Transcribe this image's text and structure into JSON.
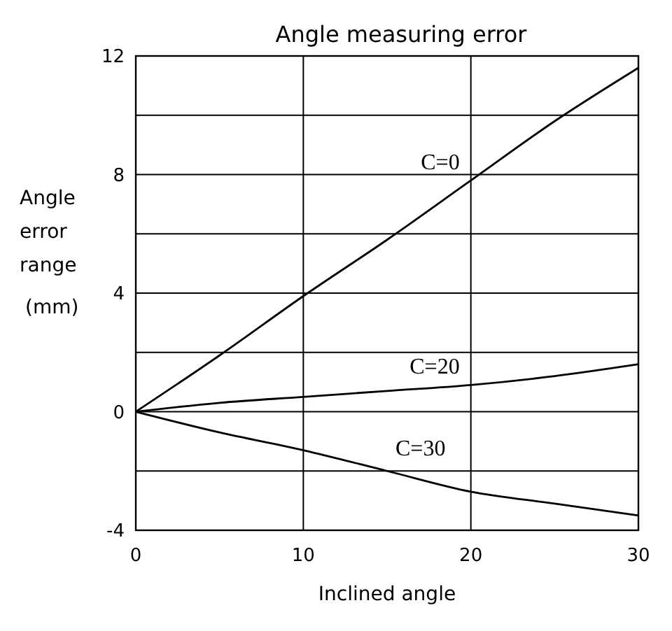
{
  "chart_data": {
    "type": "line",
    "title": "Angle measuring error",
    "xlabel": "Inclined angle",
    "ylabel": "Angle error range (mm)",
    "x": [
      0,
      5,
      10,
      15,
      20,
      25,
      30
    ],
    "xlim": [
      0,
      30
    ],
    "xticks": [
      0,
      10,
      20,
      30
    ],
    "ylim": [
      -4,
      12
    ],
    "yticks": [
      -4,
      {
        "value": -2,
        "label": null
      },
      0,
      {
        "value": 2,
        "label": null
      },
      4,
      {
        "value": 6,
        "label": null
      },
      8,
      {
        "value": 10,
        "label": null
      },
      12
    ],
    "grid": true,
    "marker": "none",
    "line_style": "solid",
    "series": [
      {
        "name": "C=0",
        "color": "#000000",
        "values": [
          0,
          1.9,
          3.9,
          5.8,
          7.8,
          9.8,
          11.6
        ]
      },
      {
        "name": "C=20",
        "color": "#000000",
        "values": [
          0,
          0.3,
          0.5,
          0.7,
          0.9,
          1.2,
          1.6
        ]
      },
      {
        "name": "C=30",
        "color": "#000000",
        "values": [
          0,
          -0.7,
          -1.3,
          -2.0,
          -2.7,
          -3.1,
          -3.5
        ]
      }
    ]
  }
}
